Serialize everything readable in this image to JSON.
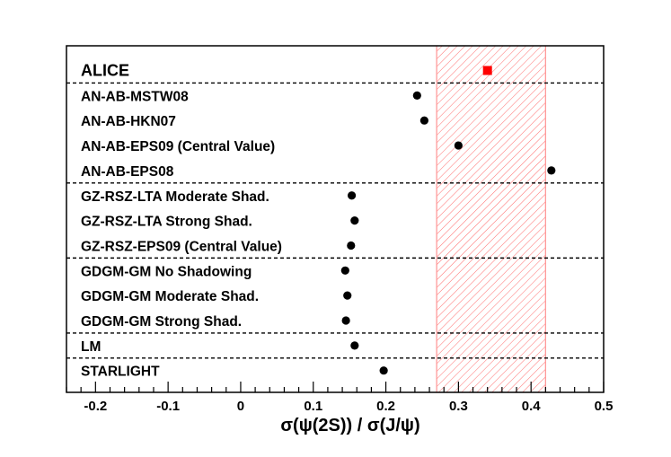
{
  "chart_data": {
    "type": "scatter",
    "title": "",
    "xlabel": "σ(ψ(2S)) / σ(J/ψ)",
    "xlim": [
      -0.24,
      0.5
    ],
    "xticks": [
      "-0.2",
      "-0.1",
      "0",
      "0.1",
      "0.2",
      "0.3",
      "0.4",
      "0.5"
    ],
    "measurement": {
      "label": "ALICE",
      "value": 0.34,
      "band": [
        0.27,
        0.42
      ],
      "color": "#ff0000"
    },
    "groups": [
      {
        "name": "AN-AB",
        "points": [
          {
            "label": "AN-AB-MSTW08",
            "value": 0.243
          },
          {
            "label": "AN-AB-HKN07",
            "value": 0.253
          },
          {
            "label": "AN-AB-EPS09 (Central Value)",
            "value": 0.3
          },
          {
            "label": "AN-AB-EPS08",
            "value": 0.428
          }
        ]
      },
      {
        "name": "GZ-RSZ",
        "points": [
          {
            "label": "GZ-RSZ-LTA Moderate Shad.",
            "value": 0.153
          },
          {
            "label": "GZ-RSZ-LTA Strong Shad.",
            "value": 0.157
          },
          {
            "label": "GZ-RSZ-EPS09 (Central Value)",
            "value": 0.152
          }
        ]
      },
      {
        "name": "GDGM",
        "points": [
          {
            "label": "GDGM-GM No Shadowing",
            "value": 0.144
          },
          {
            "label": "GDGM-GM Moderate Shad.",
            "value": 0.147
          },
          {
            "label": "GDGM-GM Strong Shad.",
            "value": 0.145
          }
        ]
      },
      {
        "name": "LM",
        "points": [
          {
            "label": "LM",
            "value": 0.157
          }
        ]
      },
      {
        "name": "STARLIGHT",
        "points": [
          {
            "label": "STARLIGHT",
            "value": 0.197
          }
        ]
      }
    ]
  }
}
